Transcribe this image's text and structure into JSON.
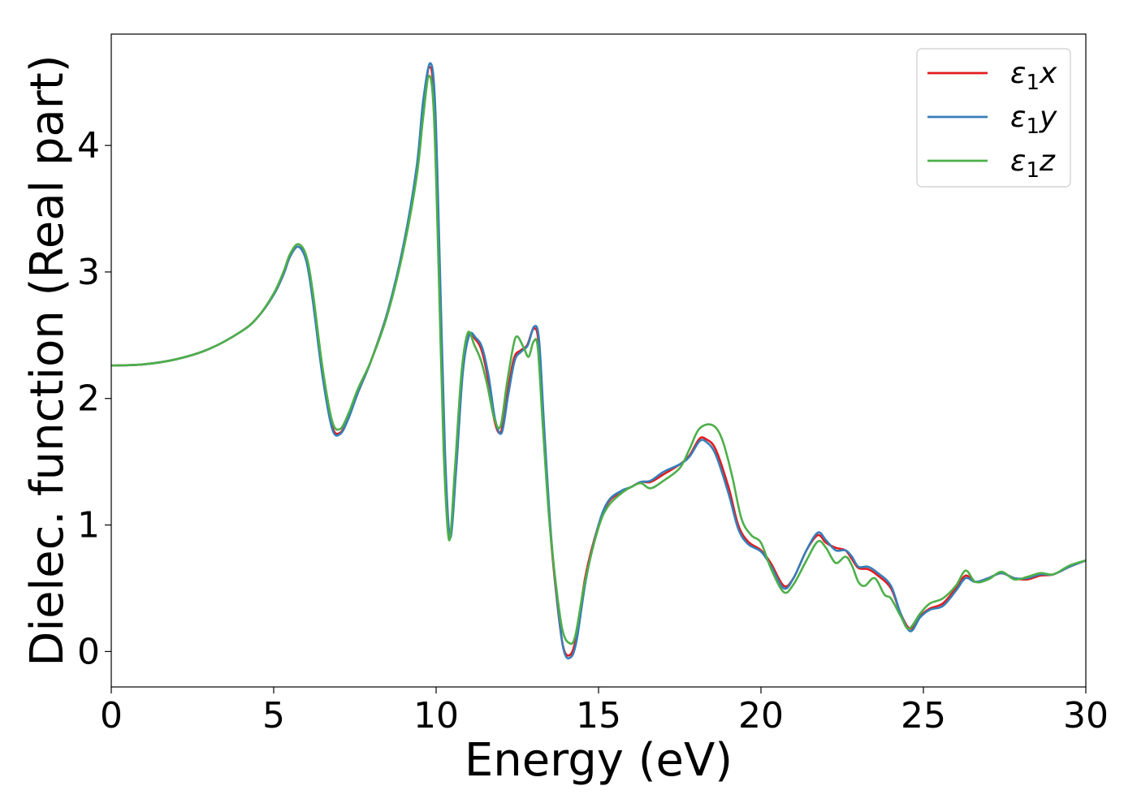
{
  "chart_data": {
    "type": "line",
    "xlabel": "Energy (eV)",
    "ylabel": "Dielec. function (Real part)",
    "xlim": [
      0,
      30
    ],
    "ylim": [
      -0.28,
      4.88
    ],
    "x_ticks": [
      0,
      5,
      10,
      15,
      20,
      25,
      30
    ],
    "y_ticks": [
      0,
      1,
      2,
      3,
      4
    ],
    "grid": false,
    "legend_position": "top-right",
    "series": [
      {
        "name": "ε1x",
        "legend_base": "ε",
        "legend_sub": "1",
        "legend_var": "x",
        "color": "#e41a1c",
        "points": [
          [
            0,
            2.26
          ],
          [
            1,
            2.27
          ],
          [
            2,
            2.31
          ],
          [
            3,
            2.39
          ],
          [
            4,
            2.53
          ],
          [
            4.5,
            2.64
          ],
          [
            5,
            2.82
          ],
          [
            5.3,
            2.98
          ],
          [
            5.5,
            3.12
          ],
          [
            5.75,
            3.2
          ],
          [
            6,
            3.1
          ],
          [
            6.2,
            2.8
          ],
          [
            6.5,
            2.2
          ],
          [
            6.8,
            1.78
          ],
          [
            7.05,
            1.73
          ],
          [
            7.3,
            1.85
          ],
          [
            7.6,
            2.05
          ],
          [
            8,
            2.3
          ],
          [
            8.5,
            2.68
          ],
          [
            9,
            3.2
          ],
          [
            9.4,
            3.8
          ],
          [
            9.6,
            4.3
          ],
          [
            9.8,
            4.62
          ],
          [
            9.95,
            4.3
          ],
          [
            10.1,
            3.0
          ],
          [
            10.25,
            1.6
          ],
          [
            10.42,
            0.92
          ],
          [
            10.6,
            1.45
          ],
          [
            10.8,
            2.2
          ],
          [
            11,
            2.5
          ],
          [
            11.2,
            2.47
          ],
          [
            11.4,
            2.38
          ],
          [
            11.6,
            2.15
          ],
          [
            11.8,
            1.82
          ],
          [
            12,
            1.74
          ],
          [
            12.2,
            2.05
          ],
          [
            12.4,
            2.32
          ],
          [
            12.6,
            2.38
          ],
          [
            12.8,
            2.42
          ],
          [
            13,
            2.55
          ],
          [
            13.15,
            2.45
          ],
          [
            13.3,
            1.8
          ],
          [
            13.5,
            1.0
          ],
          [
            13.7,
            0.45
          ],
          [
            13.9,
            0.05
          ],
          [
            14.1,
            -0.03
          ],
          [
            14.3,
            0.1
          ],
          [
            14.6,
            0.6
          ],
          [
            15,
            1.0
          ],
          [
            15.3,
            1.18
          ],
          [
            15.7,
            1.26
          ],
          [
            16,
            1.3
          ],
          [
            16.3,
            1.34
          ],
          [
            16.6,
            1.34
          ],
          [
            17,
            1.4
          ],
          [
            17.5,
            1.48
          ],
          [
            17.8,
            1.55
          ],
          [
            18.1,
            1.68
          ],
          [
            18.3,
            1.68
          ],
          [
            18.6,
            1.6
          ],
          [
            19,
            1.3
          ],
          [
            19.3,
            1.0
          ],
          [
            19.6,
            0.87
          ],
          [
            20,
            0.8
          ],
          [
            20.3,
            0.7
          ],
          [
            20.7,
            0.52
          ],
          [
            21,
            0.58
          ],
          [
            21.4,
            0.8
          ],
          [
            21.75,
            0.92
          ],
          [
            22,
            0.86
          ],
          [
            22.3,
            0.82
          ],
          [
            22.6,
            0.8
          ],
          [
            22.8,
            0.73
          ],
          [
            23,
            0.66
          ],
          [
            23.3,
            0.65
          ],
          [
            23.6,
            0.6
          ],
          [
            24,
            0.5
          ],
          [
            24.3,
            0.3
          ],
          [
            24.6,
            0.18
          ],
          [
            24.9,
            0.28
          ],
          [
            25.2,
            0.34
          ],
          [
            25.6,
            0.38
          ],
          [
            26,
            0.5
          ],
          [
            26.3,
            0.6
          ],
          [
            26.6,
            0.55
          ],
          [
            27,
            0.58
          ],
          [
            27.4,
            0.62
          ],
          [
            27.8,
            0.58
          ],
          [
            28.2,
            0.57
          ],
          [
            28.6,
            0.6
          ],
          [
            29,
            0.61
          ],
          [
            29.5,
            0.67
          ],
          [
            30,
            0.72
          ]
        ]
      },
      {
        "name": "ε1y",
        "legend_base": "ε",
        "legend_sub": "1",
        "legend_var": "y",
        "color": "#377eb8",
        "points": [
          [
            0,
            2.26
          ],
          [
            1,
            2.27
          ],
          [
            2,
            2.31
          ],
          [
            3,
            2.39
          ],
          [
            4,
            2.53
          ],
          [
            4.5,
            2.64
          ],
          [
            5,
            2.82
          ],
          [
            5.3,
            2.98
          ],
          [
            5.5,
            3.12
          ],
          [
            5.75,
            3.2
          ],
          [
            6,
            3.09
          ],
          [
            6.2,
            2.78
          ],
          [
            6.5,
            2.18
          ],
          [
            6.8,
            1.76
          ],
          [
            7.05,
            1.72
          ],
          [
            7.3,
            1.84
          ],
          [
            7.6,
            2.05
          ],
          [
            8,
            2.3
          ],
          [
            8.5,
            2.68
          ],
          [
            9,
            3.22
          ],
          [
            9.4,
            3.83
          ],
          [
            9.6,
            4.35
          ],
          [
            9.82,
            4.65
          ],
          [
            9.97,
            4.32
          ],
          [
            10.12,
            3.0
          ],
          [
            10.27,
            1.6
          ],
          [
            10.43,
            0.9
          ],
          [
            10.62,
            1.45
          ],
          [
            10.82,
            2.2
          ],
          [
            11.02,
            2.5
          ],
          [
            11.22,
            2.48
          ],
          [
            11.42,
            2.4
          ],
          [
            11.62,
            2.17
          ],
          [
            11.82,
            1.83
          ],
          [
            12.02,
            1.73
          ],
          [
            12.22,
            2.03
          ],
          [
            12.42,
            2.3
          ],
          [
            12.62,
            2.37
          ],
          [
            12.82,
            2.42
          ],
          [
            13.02,
            2.57
          ],
          [
            13.17,
            2.46
          ],
          [
            13.32,
            1.8
          ],
          [
            13.52,
            0.98
          ],
          [
            13.72,
            0.42
          ],
          [
            13.92,
            0.02
          ],
          [
            14.12,
            -0.05
          ],
          [
            14.32,
            0.08
          ],
          [
            14.62,
            0.58
          ],
          [
            15,
            1.0
          ],
          [
            15.3,
            1.19
          ],
          [
            15.7,
            1.27
          ],
          [
            16,
            1.3
          ],
          [
            16.3,
            1.34
          ],
          [
            16.6,
            1.35
          ],
          [
            17,
            1.42
          ],
          [
            17.5,
            1.48
          ],
          [
            17.8,
            1.54
          ],
          [
            18.1,
            1.66
          ],
          [
            18.3,
            1.66
          ],
          [
            18.6,
            1.56
          ],
          [
            19,
            1.25
          ],
          [
            19.3,
            0.97
          ],
          [
            19.6,
            0.85
          ],
          [
            20,
            0.79
          ],
          [
            20.3,
            0.68
          ],
          [
            20.7,
            0.5
          ],
          [
            21,
            0.58
          ],
          [
            21.4,
            0.8
          ],
          [
            21.75,
            0.94
          ],
          [
            22,
            0.88
          ],
          [
            22.3,
            0.8
          ],
          [
            22.6,
            0.8
          ],
          [
            22.8,
            0.75
          ],
          [
            23,
            0.67
          ],
          [
            23.3,
            0.67
          ],
          [
            23.6,
            0.62
          ],
          [
            24,
            0.52
          ],
          [
            24.3,
            0.3
          ],
          [
            24.6,
            0.16
          ],
          [
            24.9,
            0.27
          ],
          [
            25.2,
            0.33
          ],
          [
            25.6,
            0.36
          ],
          [
            26,
            0.48
          ],
          [
            26.3,
            0.58
          ],
          [
            26.6,
            0.55
          ],
          [
            27,
            0.58
          ],
          [
            27.4,
            0.62
          ],
          [
            27.8,
            0.58
          ],
          [
            28.2,
            0.58
          ],
          [
            28.6,
            0.61
          ],
          [
            29,
            0.61
          ],
          [
            29.5,
            0.67
          ],
          [
            30,
            0.72
          ]
        ]
      },
      {
        "name": "ε1z",
        "legend_base": "ε",
        "legend_sub": "1",
        "legend_var": "z",
        "color": "#4daf4a",
        "points": [
          [
            0,
            2.26
          ],
          [
            1,
            2.27
          ],
          [
            2,
            2.31
          ],
          [
            3,
            2.39
          ],
          [
            4,
            2.53
          ],
          [
            4.5,
            2.64
          ],
          [
            5,
            2.83
          ],
          [
            5.3,
            3.0
          ],
          [
            5.5,
            3.14
          ],
          [
            5.75,
            3.22
          ],
          [
            6,
            3.13
          ],
          [
            6.2,
            2.85
          ],
          [
            6.5,
            2.25
          ],
          [
            6.8,
            1.82
          ],
          [
            7.05,
            1.76
          ],
          [
            7.3,
            1.88
          ],
          [
            7.6,
            2.08
          ],
          [
            8,
            2.3
          ],
          [
            8.5,
            2.66
          ],
          [
            9,
            3.18
          ],
          [
            9.4,
            3.75
          ],
          [
            9.6,
            4.22
          ],
          [
            9.78,
            4.55
          ],
          [
            9.93,
            4.25
          ],
          [
            10.08,
            3.0
          ],
          [
            10.23,
            1.6
          ],
          [
            10.4,
            0.88
          ],
          [
            10.58,
            1.45
          ],
          [
            10.78,
            2.2
          ],
          [
            10.98,
            2.52
          ],
          [
            11.18,
            2.42
          ],
          [
            11.38,
            2.3
          ],
          [
            11.58,
            2.1
          ],
          [
            11.78,
            1.85
          ],
          [
            11.98,
            1.78
          ],
          [
            12.18,
            2.12
          ],
          [
            12.38,
            2.42
          ],
          [
            12.5,
            2.49
          ],
          [
            12.7,
            2.4
          ],
          [
            12.85,
            2.33
          ],
          [
            13,
            2.45
          ],
          [
            13.13,
            2.4
          ],
          [
            13.28,
            1.8
          ],
          [
            13.48,
            1.05
          ],
          [
            13.68,
            0.55
          ],
          [
            13.88,
            0.18
          ],
          [
            14.08,
            0.07
          ],
          [
            14.28,
            0.12
          ],
          [
            14.58,
            0.55
          ],
          [
            15,
            0.98
          ],
          [
            15.3,
            1.15
          ],
          [
            15.7,
            1.25
          ],
          [
            16,
            1.3
          ],
          [
            16.3,
            1.33
          ],
          [
            16.6,
            1.29
          ],
          [
            17,
            1.35
          ],
          [
            17.5,
            1.45
          ],
          [
            17.8,
            1.6
          ],
          [
            18.1,
            1.76
          ],
          [
            18.5,
            1.79
          ],
          [
            18.8,
            1.68
          ],
          [
            19.1,
            1.4
          ],
          [
            19.4,
            1.05
          ],
          [
            19.7,
            0.92
          ],
          [
            20,
            0.86
          ],
          [
            20.3,
            0.66
          ],
          [
            20.7,
            0.47
          ],
          [
            21,
            0.53
          ],
          [
            21.4,
            0.72
          ],
          [
            21.75,
            0.87
          ],
          [
            22,
            0.82
          ],
          [
            22.3,
            0.7
          ],
          [
            22.6,
            0.75
          ],
          [
            22.8,
            0.68
          ],
          [
            23,
            0.55
          ],
          [
            23.2,
            0.52
          ],
          [
            23.5,
            0.58
          ],
          [
            23.8,
            0.45
          ],
          [
            24,
            0.42
          ],
          [
            24.3,
            0.28
          ],
          [
            24.55,
            0.18
          ],
          [
            24.9,
            0.3
          ],
          [
            25.2,
            0.38
          ],
          [
            25.6,
            0.42
          ],
          [
            26,
            0.52
          ],
          [
            26.3,
            0.64
          ],
          [
            26.6,
            0.55
          ],
          [
            27,
            0.57
          ],
          [
            27.4,
            0.63
          ],
          [
            27.8,
            0.57
          ],
          [
            28.2,
            0.59
          ],
          [
            28.6,
            0.62
          ],
          [
            29,
            0.61
          ],
          [
            29.5,
            0.68
          ],
          [
            30,
            0.72
          ]
        ]
      }
    ]
  }
}
